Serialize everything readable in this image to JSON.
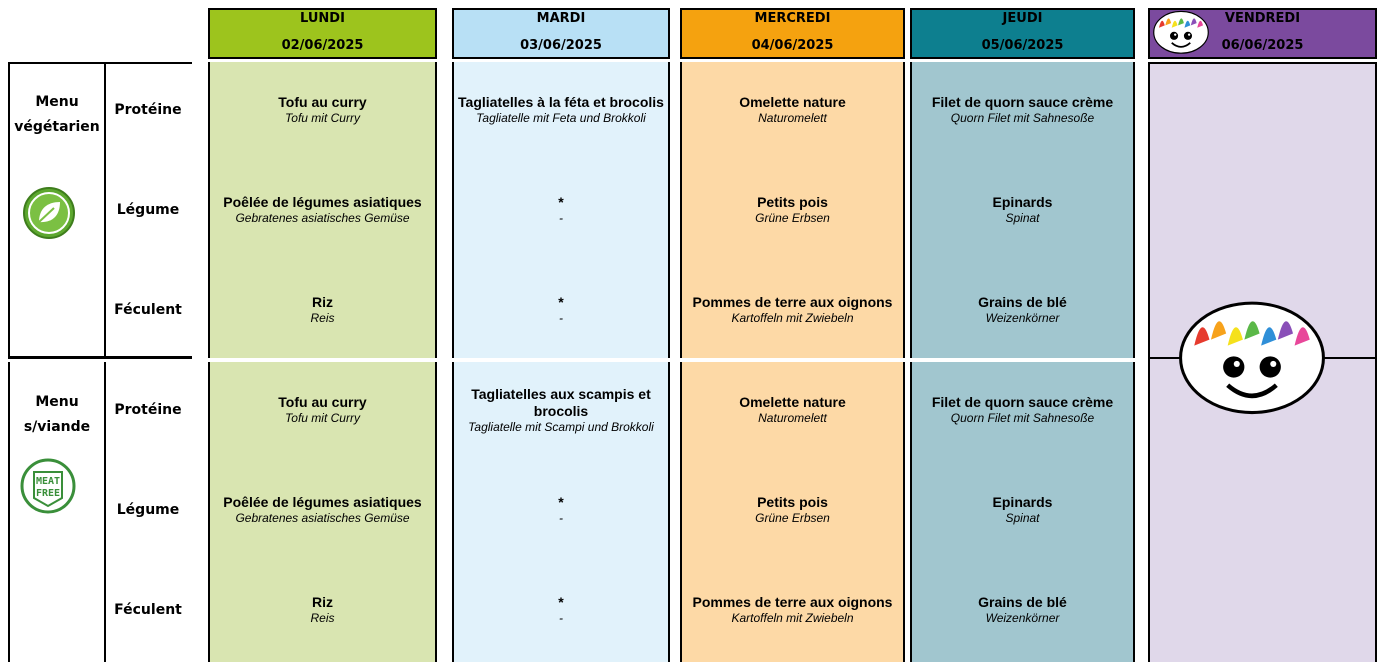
{
  "header": {
    "days": [
      {
        "day": "LUNDI",
        "date": "02/06/2025"
      },
      {
        "day": "MARDI",
        "date": "03/06/2025"
      },
      {
        "day": "MERCREDI",
        "date": "04/06/2025"
      },
      {
        "day": "JEUDI",
        "date": "05/06/2025"
      },
      {
        "day": "VENDREDI",
        "date": "06/06/2025"
      }
    ]
  },
  "menus": [
    {
      "name": "Menu végétarien",
      "rows": [
        {
          "category": "Protéine",
          "dishes": [
            {
              "fr": "Tofu au curry",
              "de": "Tofu mit Curry"
            },
            {
              "fr": "Tagliatelles à la féta et brocolis",
              "de": "Tagliatelle mit Feta und Brokkoli"
            },
            {
              "fr": "Omelette nature",
              "de": "Naturomelett"
            },
            {
              "fr": "Filet de quorn sauce crème",
              "de": "Quorn Filet mit Sahnesoße"
            }
          ]
        },
        {
          "category": "Légume",
          "dishes": [
            {
              "fr": "Poêlée de légumes asiatiques",
              "de": "Gebratenes asiatisches Gemüse"
            },
            {
              "fr": "*",
              "de": "-"
            },
            {
              "fr": "Petits pois",
              "de": "Grüne Erbsen"
            },
            {
              "fr": "Epinards",
              "de": "Spinat"
            }
          ]
        },
        {
          "category": "Féculent",
          "dishes": [
            {
              "fr": "Riz",
              "de": "Reis"
            },
            {
              "fr": "*",
              "de": "-"
            },
            {
              "fr": "Pommes de terre aux oignons",
              "de": "Kartoffeln mit Zwiebeln"
            },
            {
              "fr": "Grains de blé",
              "de": "Weizenkörner"
            }
          ]
        }
      ]
    },
    {
      "name": "Menu s/viande",
      "rows": [
        {
          "category": "Protéine",
          "dishes": [
            {
              "fr": "Tofu au curry",
              "de": "Tofu mit Curry"
            },
            {
              "fr": "Tagliatelles aux scampis et brocolis",
              "de": "Tagliatelle mit Scampi und Brokkoli"
            },
            {
              "fr": "Omelette nature",
              "de": "Naturomelett"
            },
            {
              "fr": "Filet de quorn sauce crème",
              "de": "Quorn Filet mit Sahnesoße"
            }
          ]
        },
        {
          "category": "Légume",
          "dishes": [
            {
              "fr": "Poêlée de légumes asiatiques",
              "de": "Gebratenes asiatisches Gemüse"
            },
            {
              "fr": "*",
              "de": "-"
            },
            {
              "fr": "Petits pois",
              "de": "Grüne Erbsen"
            },
            {
              "fr": "Epinards",
              "de": "Spinat"
            }
          ]
        },
        {
          "category": "Féculent",
          "dishes": [
            {
              "fr": "Riz",
              "de": "Reis"
            },
            {
              "fr": "*",
              "de": "-"
            },
            {
              "fr": "Pommes de terre aux oignons",
              "de": "Kartoffeln mit Zwiebeln"
            },
            {
              "fr": "Grains de blé",
              "de": "Weizenkörner"
            }
          ]
        }
      ]
    }
  ]
}
